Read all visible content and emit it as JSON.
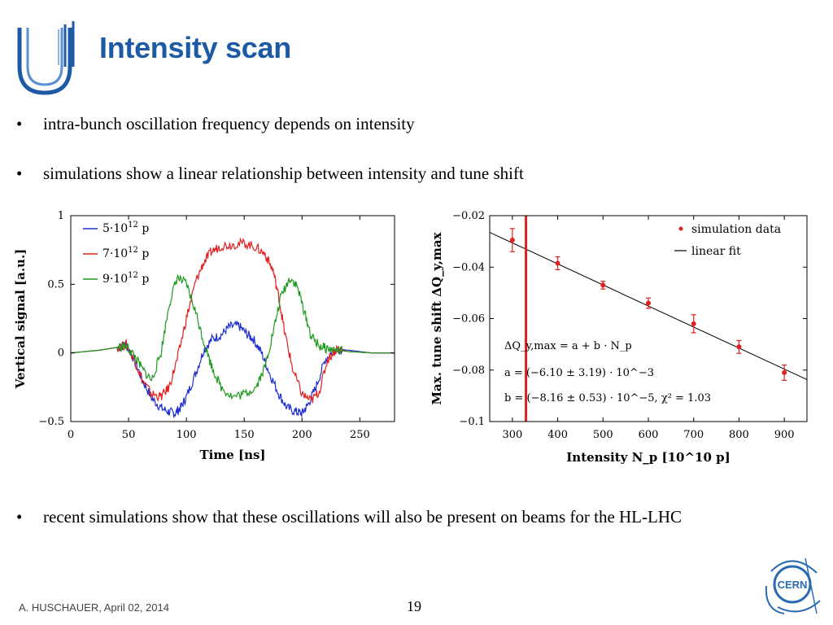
{
  "slide": {
    "title": "Intensity scan",
    "bullets": [
      "intra-bunch oscillation frequency depends on intensity",
      "simulations show a linear relationship between intensity and tune shift",
      "recent simulations show that these oscillations will also be present on beams for the HL-LHC"
    ],
    "bullet_char": "•",
    "footer": "A. HUSCHAUER, April 02, 2014",
    "page_number": "19",
    "cern_label": "CERN",
    "colors": {
      "title": "#1c5aa6",
      "logo": "#1c5aa6",
      "cern": "#2a6ab3"
    }
  },
  "chart_data": [
    {
      "type": "line",
      "xlabel": "Time [ns]",
      "ylabel": "Vertical signal [a.u.]",
      "xlim": [
        0,
        280
      ],
      "ylim": [
        -0.5,
        1
      ],
      "xticks": [
        0,
        50,
        100,
        150,
        200,
        250
      ],
      "yticks": [
        -0.5,
        0,
        0.5,
        1
      ],
      "legend_position": "top-left",
      "series": [
        {
          "name": "5·10",
          "sup": "12",
          "unit": "p",
          "color": "#1f2fcf",
          "x": [
            0,
            25,
            40,
            48,
            55,
            62,
            70,
            78,
            85,
            90,
            95,
            100,
            108,
            115,
            122,
            130,
            137,
            145,
            152,
            158,
            165,
            172,
            180,
            187,
            195,
            200,
            205,
            212,
            220,
            228,
            240,
            260,
            280
          ],
          "y": [
            0,
            0.02,
            0.04,
            0.06,
            -0.05,
            -0.2,
            -0.33,
            -0.4,
            -0.43,
            -0.44,
            -0.4,
            -0.32,
            -0.15,
            0.02,
            0.1,
            0.13,
            0.19,
            0.2,
            0.14,
            0.1,
            0.0,
            -0.15,
            -0.3,
            -0.4,
            -0.43,
            -0.44,
            -0.38,
            -0.25,
            -0.05,
            0.03,
            0.02,
            0,
            0
          ]
        },
        {
          "name": "7·10",
          "sup": "12",
          "unit": "p",
          "color": "#e02020",
          "x": [
            0,
            25,
            40,
            48,
            55,
            62,
            70,
            78,
            85,
            92,
            100,
            108,
            115,
            122,
            130,
            140,
            150,
            160,
            168,
            175,
            180,
            185,
            192,
            200,
            208,
            215,
            222,
            230,
            240,
            260,
            280
          ],
          "y": [
            0,
            0.02,
            0.04,
            0.06,
            -0.05,
            -0.2,
            -0.3,
            -0.32,
            -0.25,
            -0.05,
            0.25,
            0.52,
            0.66,
            0.74,
            0.78,
            0.79,
            0.8,
            0.77,
            0.72,
            0.6,
            0.4,
            0.15,
            -0.12,
            -0.3,
            -0.35,
            -0.28,
            -0.05,
            0.03,
            0.01,
            0,
            0
          ]
        },
        {
          "name": "9·10",
          "sup": "12",
          "unit": "p",
          "color": "#1e9a1e",
          "x": [
            0,
            25,
            40,
            48,
            55,
            62,
            70,
            78,
            85,
            92,
            100,
            108,
            115,
            122,
            130,
            140,
            150,
            160,
            168,
            175,
            182,
            190,
            196,
            202,
            208,
            215,
            222,
            230,
            240,
            260,
            280
          ],
          "y": [
            0,
            0.02,
            0.04,
            0.05,
            -0.02,
            -0.12,
            -0.2,
            0.0,
            0.35,
            0.55,
            0.5,
            0.3,
            0.08,
            -0.1,
            -0.25,
            -0.32,
            -0.3,
            -0.25,
            -0.1,
            0.15,
            0.42,
            0.55,
            0.48,
            0.3,
            0.12,
            0.05,
            0.03,
            0.02,
            0.01,
            0,
            0
          ]
        }
      ]
    },
    {
      "type": "scatter",
      "xlabel": "Intensity N_p [10^10 p]",
      "ylabel": "Max. tune shift ΔQ_y,max",
      "xlim": [
        250,
        950
      ],
      "ylim": [
        -0.1,
        -0.02
      ],
      "xticks": [
        300,
        400,
        500,
        600,
        700,
        800,
        900
      ],
      "yticks": [
        -0.02,
        -0.04,
        -0.06,
        -0.08,
        -0.1
      ],
      "legend_position": "top-right",
      "series": [
        {
          "name": "simulation data",
          "color": "#e02020",
          "x": [
            300,
            400,
            500,
            600,
            700,
            800,
            900
          ],
          "y": [
            -0.0295,
            -0.0385,
            -0.047,
            -0.054,
            -0.062,
            -0.071,
            -0.081
          ],
          "err": [
            0.0045,
            0.0025,
            0.0015,
            0.002,
            0.0035,
            0.0025,
            0.003
          ]
        },
        {
          "name": "linear fit",
          "color": "#000000",
          "type": "line",
          "x": [
            250,
            950
          ],
          "y": [
            -0.0265,
            -0.0837
          ]
        }
      ],
      "vertical_marker": {
        "x": 330,
        "color": "#e02020"
      },
      "annotation": {
        "line1": "ΔQ_y,max = a + b · N_p",
        "line2": "a = (−6.10 ± 3.19) · 10^−3",
        "line3": "b = (−8.16 ± 0.53) · 10^−5, χ² = 1.03"
      }
    }
  ]
}
